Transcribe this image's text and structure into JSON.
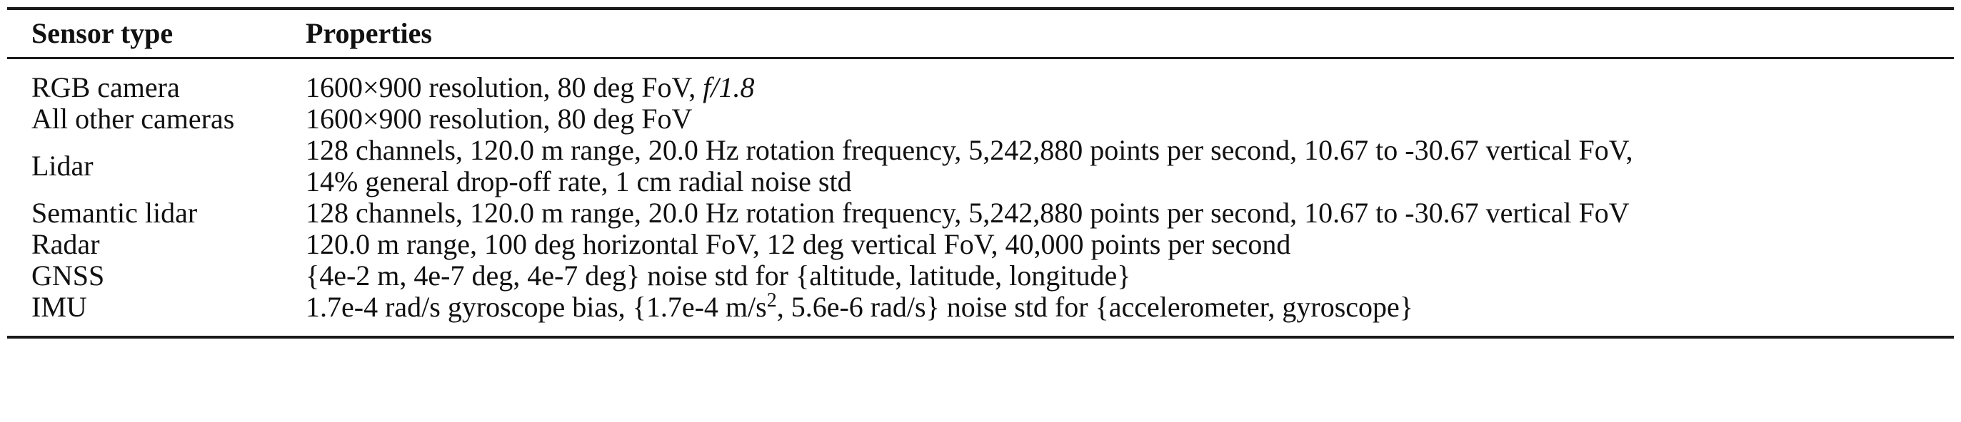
{
  "table": {
    "headers": {
      "sensor_type": "Sensor type",
      "properties": "Properties"
    },
    "rows": [
      {
        "sensor": "RGB camera",
        "properties_lines": [
          "1600×900 resolution, 80 deg FoV, "
        ],
        "math_suffix": "f/1.8"
      },
      {
        "sensor": "All other cameras",
        "properties_lines": [
          "1600×900 resolution, 80 deg FoV"
        ]
      },
      {
        "sensor": "Lidar",
        "properties_lines": [
          "128 channels, 120.0 m range, 20.0 Hz rotation frequency, 5,242,880 points per second, 10.67 to -30.67 vertical FoV,",
          "14% general drop-off rate, 1 cm radial noise std"
        ]
      },
      {
        "sensor": "Semantic lidar",
        "properties_lines": [
          "128 channels, 120.0 m range, 20.0 Hz rotation frequency, 5,242,880 points per second, 10.67 to -30.67 vertical FoV"
        ]
      },
      {
        "sensor": "Radar",
        "properties_lines": [
          "120.0 m range, 100 deg horizontal FoV, 12 deg vertical FoV, 40,000 points per second"
        ]
      },
      {
        "sensor": "GNSS",
        "properties_lines": [
          "{4e-2 m, 4e-7 deg, 4e-7 deg} noise std for {altitude, latitude, longitude}"
        ]
      },
      {
        "sensor": "IMU",
        "properties_part1": "1.7e-4 rad/s gyroscope bias, {1.7e-4 m/s",
        "properties_sup": "2",
        "properties_part2": ", 5.6e-6 rad/s} noise std for {accelerometer, gyroscope}"
      }
    ]
  }
}
